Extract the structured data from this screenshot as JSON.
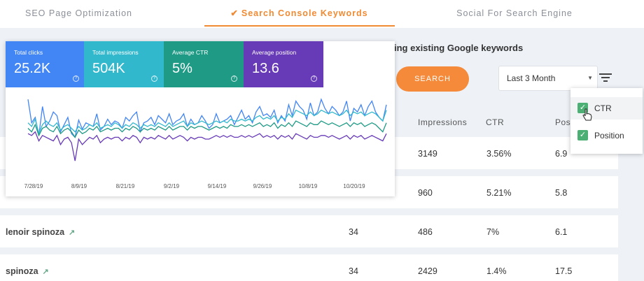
{
  "tabs": [
    {
      "label": "SEO Page Optimization"
    },
    {
      "label": "Search Console Keywords"
    },
    {
      "label": "Social For Search Engine"
    }
  ],
  "heading": "ing existing Google keywords",
  "search_button": "SEARCH",
  "period_select": "Last 3 Month",
  "columns": {
    "impressions": "Impressions",
    "ctr": "CTR",
    "position": "Pos"
  },
  "rows": [
    {
      "keyword": "",
      "clicks": "",
      "impressions": "3149",
      "ctr": "3.56%",
      "position": "6.9"
    },
    {
      "keyword": "",
      "clicks": "",
      "impressions": "960",
      "ctr": "5.21%",
      "position": "5.8"
    },
    {
      "keyword": "lenoir spinoza",
      "clicks": "34",
      "impressions": "486",
      "ctr": "7%",
      "position": "6.1"
    },
    {
      "keyword": "spinoza",
      "clicks": "34",
      "impressions": "2429",
      "ctr": "1.4%",
      "position": "17.5"
    }
  ],
  "metrics": [
    {
      "label": "Total clicks",
      "value": "25.2K",
      "color": "#4285f4"
    },
    {
      "label": "Total impressions",
      "value": "504K",
      "color": "#32b8cd"
    },
    {
      "label": "Average CTR",
      "value": "5%",
      "color": "#1e9a85"
    },
    {
      "label": "Average position",
      "value": "13.6",
      "color": "#673ab7"
    }
  ],
  "dropdown": [
    {
      "label": "CTR",
      "checked": true
    },
    {
      "label": "Position",
      "checked": true
    }
  ],
  "chart_data": {
    "type": "line",
    "x_ticks": [
      "7/28/19",
      "8/9/19",
      "8/21/19",
      "9/2/19",
      "9/14/19",
      "9/26/19",
      "10/8/19",
      "10/20/19"
    ],
    "series": [
      {
        "color": "#4285f4",
        "values": [
          88,
          62,
          68,
          48,
          80,
          58,
          64,
          74,
          70,
          52,
          60,
          68,
          50,
          46,
          65,
          55,
          62,
          60,
          58,
          72,
          54,
          58,
          66,
          60,
          64,
          62,
          56,
          68,
          64,
          70,
          74,
          52,
          62,
          64,
          68,
          60,
          70,
          66,
          62,
          72,
          60,
          64,
          66,
          72,
          58,
          66,
          60,
          62,
          70,
          64,
          56,
          60,
          72,
          62,
          64,
          66,
          70,
          60,
          68,
          76,
          66,
          70,
          62,
          74,
          80,
          70,
          72,
          68,
          76,
          62,
          70,
          64,
          82,
          70,
          86,
          80,
          76,
          66,
          84,
          70,
          74,
          88,
          78,
          72,
          80,
          76,
          70,
          74,
          86,
          64,
          78,
          74,
          82,
          70,
          80,
          86,
          74,
          68,
          64,
          82
        ]
      },
      {
        "color": "#32b8cd",
        "values": [
          62,
          58,
          66,
          50,
          60,
          64,
          60,
          58,
          62,
          54,
          58,
          60,
          56,
          52,
          58,
          54,
          56,
          60,
          58,
          62,
          56,
          58,
          60,
          58,
          62,
          60,
          56,
          60,
          58,
          62,
          60,
          56,
          60,
          58,
          60,
          58,
          62,
          60,
          58,
          62,
          58,
          60,
          62,
          64,
          58,
          62,
          60,
          62,
          64,
          62,
          60,
          62,
          64,
          62,
          64,
          62,
          66,
          64,
          64,
          66,
          64,
          66,
          64,
          68,
          70,
          66,
          68,
          66,
          70,
          64,
          68,
          66,
          72,
          68,
          76,
          74,
          72,
          70,
          74,
          70,
          72,
          76,
          74,
          72,
          74,
          72,
          70,
          72,
          76,
          70,
          74,
          72,
          74,
          70,
          72,
          74,
          72,
          68,
          64,
          76
        ]
      },
      {
        "color": "#1e9a85",
        "values": [
          56,
          52,
          60,
          48,
          56,
          58,
          54,
          52,
          58,
          50,
          54,
          56,
          52,
          46,
          54,
          50,
          52,
          56,
          54,
          58,
          52,
          54,
          56,
          54,
          56,
          56,
          52,
          56,
          54,
          58,
          56,
          52,
          56,
          54,
          56,
          54,
          58,
          56,
          54,
          58,
          54,
          56,
          58,
          58,
          54,
          58,
          56,
          58,
          58,
          56,
          54,
          56,
          58,
          56,
          58,
          56,
          60,
          58,
          58,
          60,
          58,
          60,
          58,
          60,
          62,
          58,
          60,
          58,
          62,
          56,
          60,
          58,
          62,
          58,
          64,
          62,
          60,
          58,
          62,
          60,
          60,
          64,
          62,
          60,
          62,
          60,
          58,
          60,
          62,
          58,
          62,
          60,
          62,
          58,
          60,
          62,
          60,
          56,
          52,
          62
        ]
      },
      {
        "color": "#673ab7",
        "values": [
          50,
          48,
          52,
          42,
          48,
          46,
          44,
          42,
          48,
          38,
          44,
          46,
          40,
          20,
          44,
          38,
          42,
          46,
          44,
          48,
          40,
          44,
          46,
          44,
          46,
          46,
          42,
          46,
          44,
          48,
          46,
          40,
          46,
          44,
          46,
          44,
          48,
          46,
          44,
          48,
          44,
          46,
          48,
          46,
          42,
          46,
          44,
          46,
          46,
          44,
          44,
          46,
          48,
          46,
          48,
          46,
          48,
          46,
          46,
          48,
          46,
          48,
          46,
          48,
          50,
          46,
          48,
          46,
          48,
          44,
          48,
          46,
          48,
          44,
          50,
          48,
          46,
          44,
          48,
          46,
          46,
          48,
          48,
          46,
          48,
          46,
          44,
          46,
          48,
          44,
          48,
          46,
          48,
          44,
          46,
          48,
          46,
          44,
          42,
          50
        ]
      }
    ]
  }
}
